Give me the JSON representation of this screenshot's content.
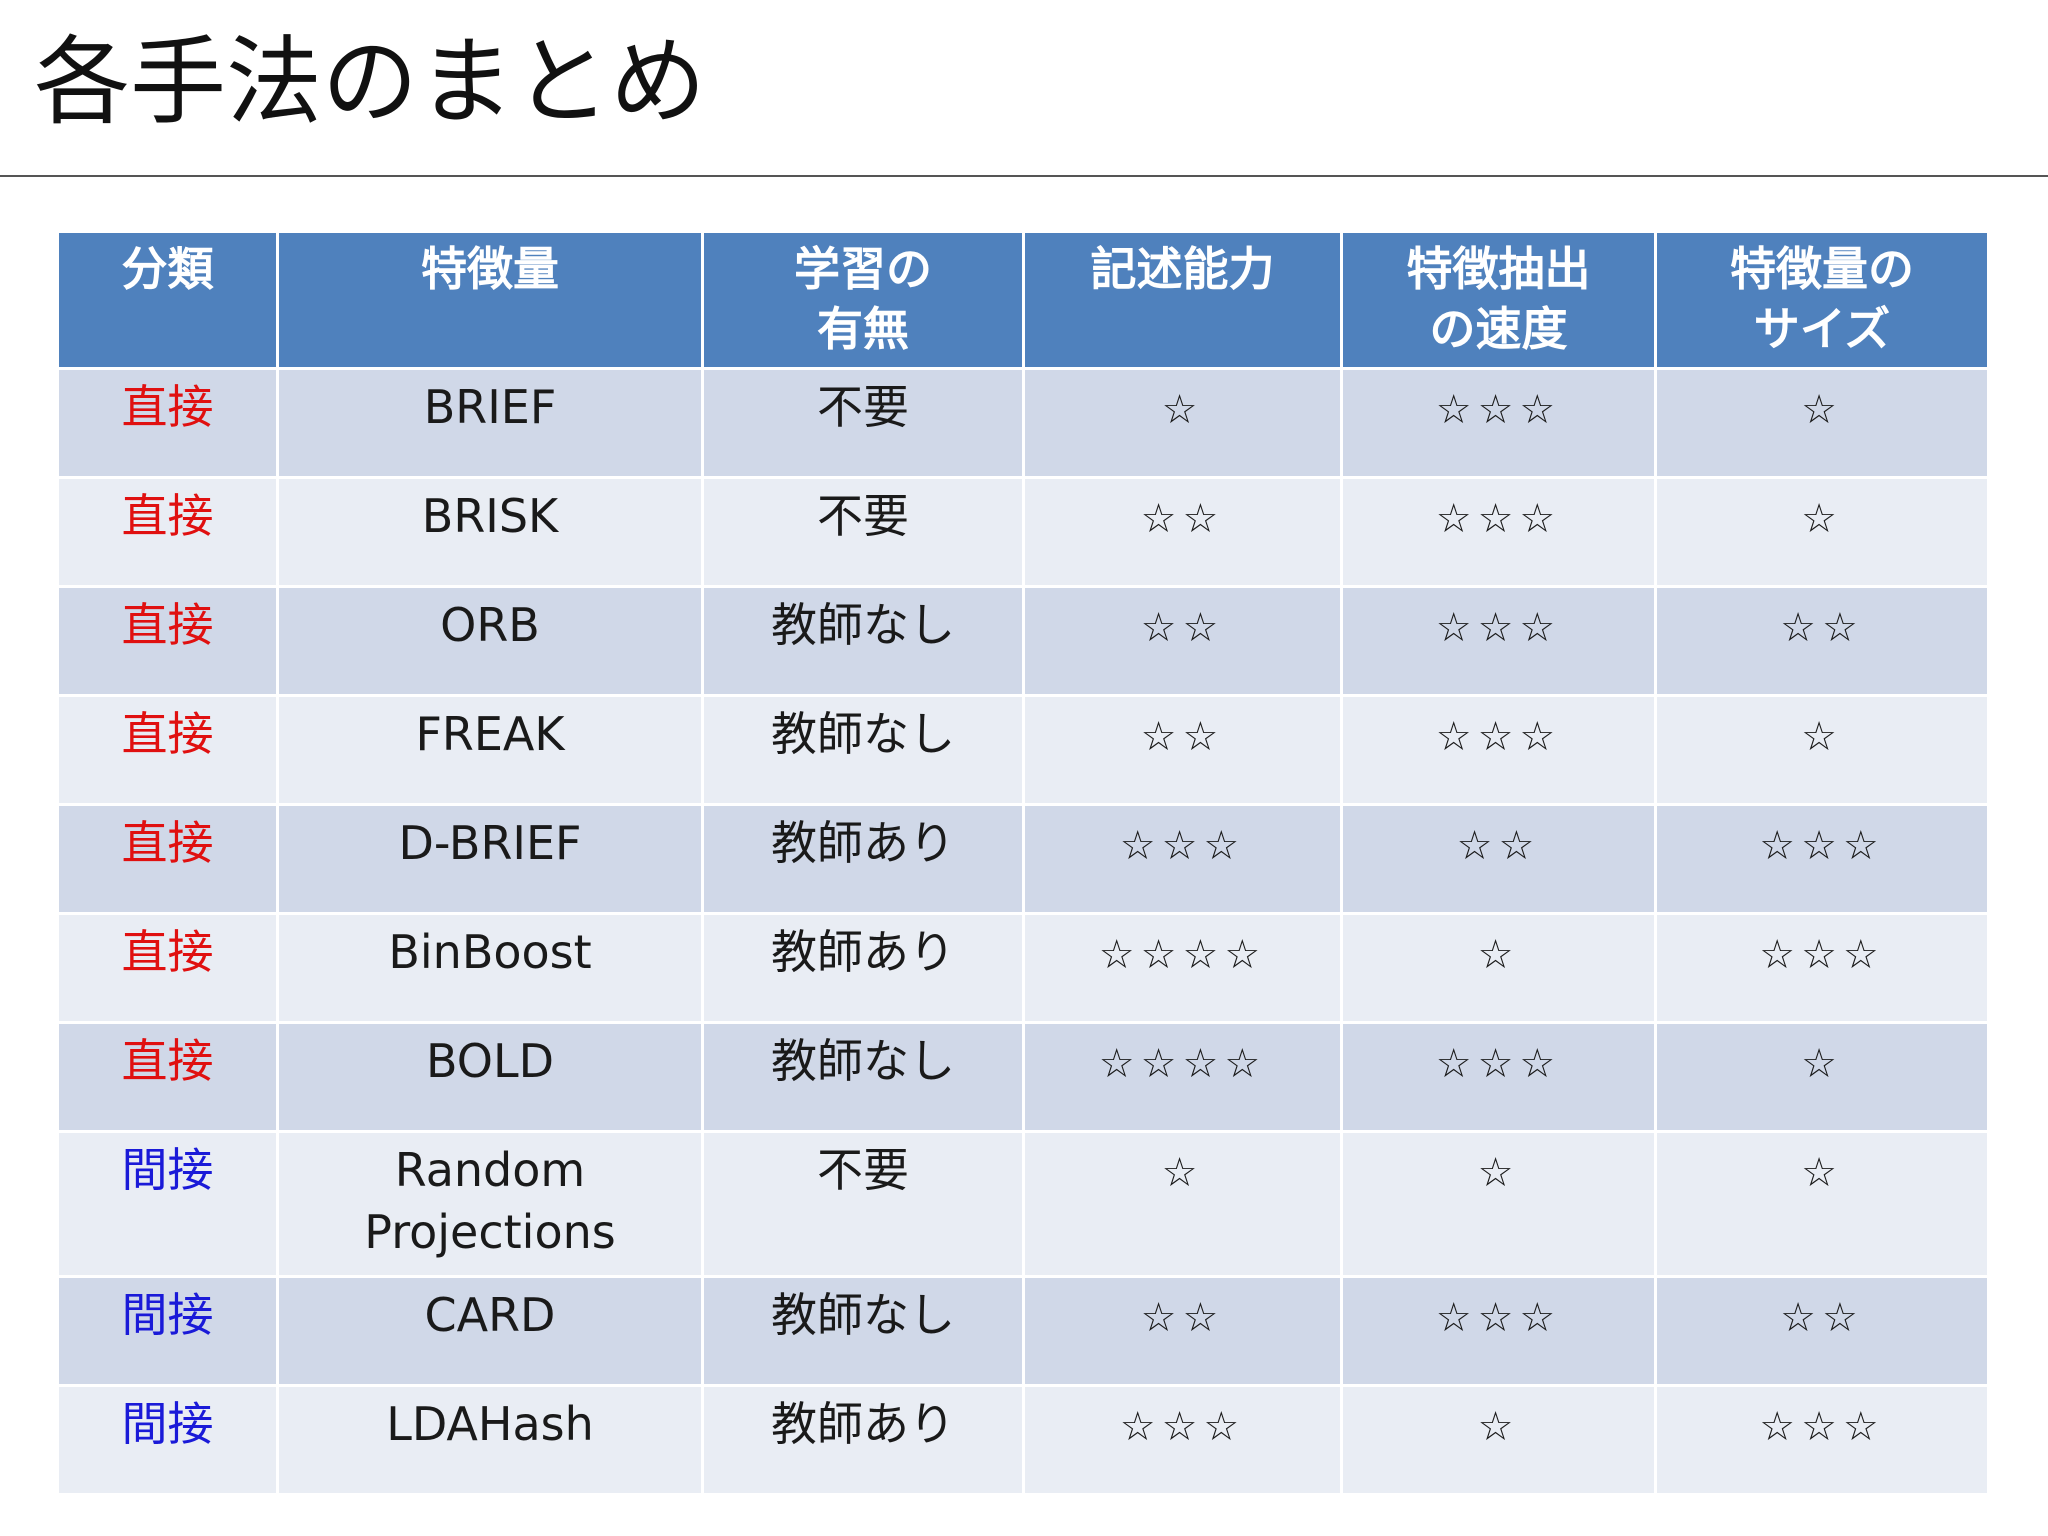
{
  "title": "各手法のまとめ",
  "colors": {
    "header_bg": "#4f81bd",
    "row_odd": "#d0d8e8",
    "row_even": "#e9edf4",
    "direct": "#e01010",
    "indirect": "#1a1ad8"
  },
  "table": {
    "headers": [
      "分類",
      "特徴量",
      "学習の有無",
      "記述能力",
      "特徴抽出の速度",
      "特徴量のサイズ"
    ],
    "rows": [
      {
        "category": "直接",
        "method": "BRIEF",
        "learning": "不要",
        "descriptive": "☆",
        "speed": "☆☆☆",
        "size": "☆"
      },
      {
        "category": "直接",
        "method": "BRISK",
        "learning": "不要",
        "descriptive": "☆☆",
        "speed": "☆☆☆",
        "size": "☆"
      },
      {
        "category": "直接",
        "method": "ORB",
        "learning": "教師なし",
        "descriptive": "☆☆",
        "speed": "☆☆☆",
        "size": "☆☆"
      },
      {
        "category": "直接",
        "method": "FREAK",
        "learning": "教師なし",
        "descriptive": "☆☆",
        "speed": "☆☆☆",
        "size": "☆"
      },
      {
        "category": "直接",
        "method": "D-BRIEF",
        "learning": "教師あり",
        "descriptive": "☆☆☆",
        "speed": "☆☆",
        "size": "☆☆☆"
      },
      {
        "category": "直接",
        "method": "BinBoost",
        "learning": "教師あり",
        "descriptive": "☆☆☆☆",
        "speed": "☆",
        "size": "☆☆☆"
      },
      {
        "category": "直接",
        "method": "BOLD",
        "learning": "教師なし",
        "descriptive": "☆☆☆☆",
        "speed": "☆☆☆",
        "size": "☆"
      },
      {
        "category": "間接",
        "method": "Random Projections",
        "learning": "不要",
        "descriptive": "☆",
        "speed": "☆",
        "size": "☆"
      },
      {
        "category": "間接",
        "method": "CARD",
        "learning": "教師なし",
        "descriptive": "☆☆",
        "speed": "☆☆☆",
        "size": "☆☆"
      },
      {
        "category": "間接",
        "method": "LDAHash",
        "learning": "教師あり",
        "descriptive": "☆☆☆",
        "speed": "☆",
        "size": "☆☆☆"
      }
    ]
  }
}
